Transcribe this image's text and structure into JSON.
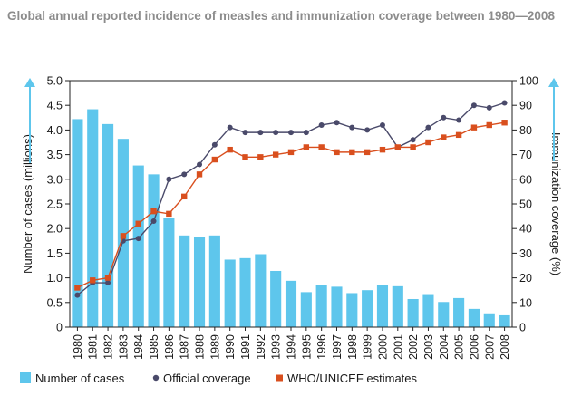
{
  "title": "Global annual reported incidence of measles and immunization coverage between 1980—2008",
  "chart_data": {
    "type": "bar",
    "categories": [
      "1980",
      "1981",
      "1982",
      "1983",
      "1984",
      "1985",
      "1986",
      "1987",
      "1988",
      "1989",
      "1990",
      "1991",
      "1992",
      "1993",
      "1994",
      "1995",
      "1996",
      "1997",
      "1998",
      "1999",
      "2000",
      "2001",
      "2002",
      "2003",
      "2004",
      "2005",
      "2006",
      "2007",
      "2008"
    ],
    "series": [
      {
        "name": "Number of cases",
        "type": "bar",
        "axis": "left",
        "color": "#5ec6ec",
        "values": [
          4.22,
          4.42,
          4.12,
          3.82,
          3.28,
          3.1,
          2.22,
          1.86,
          1.82,
          1.86,
          1.37,
          1.4,
          1.48,
          1.14,
          0.94,
          0.71,
          0.86,
          0.82,
          0.69,
          0.75,
          0.85,
          0.83,
          0.57,
          0.67,
          0.51,
          0.59,
          0.37,
          0.28,
          0.24
        ]
      },
      {
        "name": "Official coverage",
        "type": "line",
        "axis": "right",
        "color": "#4a4a6a",
        "values": [
          13,
          18,
          18,
          35,
          36,
          43,
          60,
          62,
          66,
          74,
          81,
          79,
          79,
          79,
          79,
          79,
          82,
          83,
          81,
          80,
          82,
          73,
          76,
          81,
          85,
          84,
          90,
          89,
          91
        ]
      },
      {
        "name": "WHO/UNICEF estimates",
        "type": "line",
        "axis": "right",
        "color": "#d94f1e",
        "values": [
          16,
          19,
          20,
          37,
          42,
          47,
          46,
          53,
          62,
          68,
          72,
          69,
          69,
          70,
          71,
          73,
          73,
          71,
          71,
          71,
          72,
          73,
          73,
          75,
          77,
          78,
          81,
          82,
          83
        ]
      }
    ],
    "ylabel": "Number of cases (millions)",
    "y2label": "Immunization coverage (%)",
    "ylim": [
      0,
      5
    ],
    "y2lim": [
      0,
      100
    ],
    "yticks": [
      "0",
      "0.5",
      "1.0",
      "1.5",
      "2.0",
      "2.5",
      "3.0",
      "3.5",
      "4.0",
      "4.5",
      "5.0"
    ],
    "y2ticks": [
      "0",
      "10",
      "20",
      "30",
      "40",
      "50",
      "60",
      "70",
      "80",
      "90",
      "100"
    ],
    "grid": false,
    "legend_position": "bottom"
  }
}
